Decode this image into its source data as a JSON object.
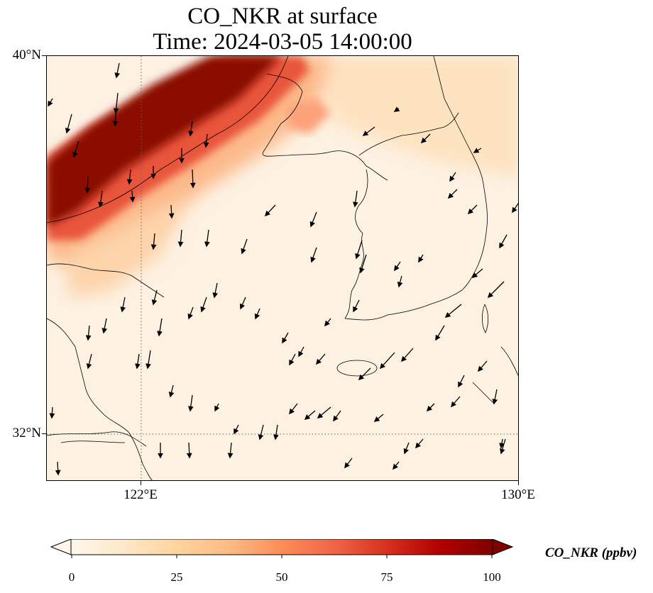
{
  "title": {
    "line1": "CO_NKR at surface",
    "line2": "Time: 2024-03-05 14:00:00"
  },
  "map": {
    "extent": {
      "lon_min": 120,
      "lon_max": 130,
      "lat_min": 31,
      "lat_max": 40
    },
    "gridlines": {
      "lons": [
        122
      ],
      "lats": [
        32
      ],
      "style": "dotted"
    },
    "lat_labels": [
      {
        "value": 40,
        "text": "40°N"
      },
      {
        "value": 32,
        "text": "32°N"
      }
    ],
    "lon_labels": [
      {
        "value": 122,
        "text": "122°E"
      },
      {
        "value": 130,
        "text": "130°E"
      }
    ],
    "field": "CO_NKR",
    "plume_description": "high-concentration band oriented SW-NE over northern Bohai / Liaoning",
    "wind_vectors": "quiver arrows, predominantly northerly to northeasterly flow"
  },
  "colorbar": {
    "label": "CO_NKR (ppbv)",
    "min": 0,
    "max": 100,
    "extend": "both",
    "ticks": [
      {
        "value": 0,
        "text": "0"
      },
      {
        "value": 25,
        "text": "25"
      },
      {
        "value": 50,
        "text": "50"
      },
      {
        "value": 75,
        "text": "75"
      },
      {
        "value": 100,
        "text": "100"
      }
    ],
    "colormap": "OrRd",
    "colors": [
      "#fff7ec",
      "#fee8c8",
      "#fdd49e",
      "#fdbb84",
      "#fc8d59",
      "#ef6548",
      "#d7301f",
      "#b30000",
      "#7f0000"
    ]
  }
}
